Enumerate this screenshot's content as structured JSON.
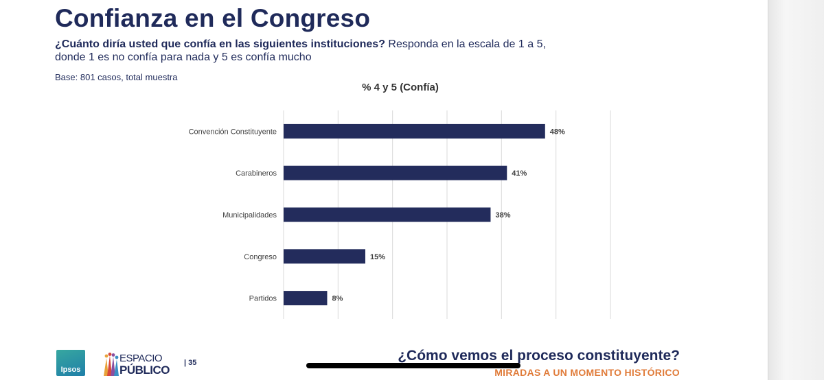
{
  "slide": {
    "title": "Confianza en el Congreso",
    "question_bold": "¿Cuánto diría usted que confía en las siguientes instituciones?",
    "question_rest": " Responda en la escala de 1 a 5, donde 1 es no confía para nada y 5 es confía mucho",
    "base": "Base: 801 casos, total muestra",
    "page_number": "| 35"
  },
  "footer": {
    "headline": "¿Cómo vemos el proceso constituyente?",
    "subline": "MIRADAS A UN MOMENTO HISTÓRICO",
    "logo_ipsos": "Ipsos",
    "logo_espacio_line1": "ESPACIO",
    "logo_espacio_line2": "PÚBLICO"
  },
  "chart_data": {
    "type": "bar",
    "orientation": "horizontal",
    "title": "% 4 y 5 (Confía)",
    "categories": [
      "Convención Constituyente",
      "Carabineros",
      "Municipalidades",
      "Congreso",
      "Partidos"
    ],
    "values": [
      48,
      41,
      38,
      15,
      8
    ],
    "value_labels": [
      "48%",
      "41%",
      "38%",
      "15%",
      "8%"
    ],
    "xlim": [
      0,
      60
    ],
    "grid": true,
    "bar_color": "#232c5c"
  },
  "colors": {
    "title": "#1f2a5a",
    "accent_orange": "#e07b39",
    "bar": "#232c5c"
  }
}
